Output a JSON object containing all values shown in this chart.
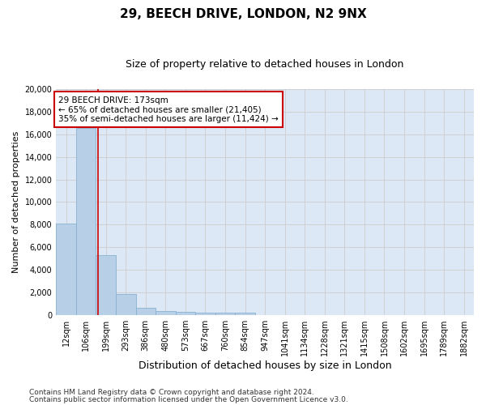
{
  "title1": "29, BEECH DRIVE, LONDON, N2 9NX",
  "title2": "Size of property relative to detached houses in London",
  "xlabel": "Distribution of detached houses by size in London",
  "ylabel": "Number of detached properties",
  "categories": [
    "12sqm",
    "106sqm",
    "199sqm",
    "293sqm",
    "386sqm",
    "480sqm",
    "573sqm",
    "667sqm",
    "760sqm",
    "854sqm",
    "947sqm",
    "1041sqm",
    "1134sqm",
    "1228sqm",
    "1321sqm",
    "1415sqm",
    "1508sqm",
    "1602sqm",
    "1695sqm",
    "1789sqm",
    "1882sqm"
  ],
  "values": [
    8100,
    16600,
    5300,
    1850,
    650,
    350,
    250,
    200,
    150,
    200,
    0,
    0,
    0,
    0,
    0,
    0,
    0,
    0,
    0,
    0,
    0
  ],
  "bar_color": "#b8cfe8",
  "bar_edge_color": "#8ab0d0",
  "vline_color": "#cc0000",
  "annotation_text": "29 BEECH DRIVE: 173sqm\n← 65% of detached houses are smaller (21,405)\n35% of semi-detached houses are larger (11,424) →",
  "annotation_box_color": "#ffffff",
  "annotation_box_edge_color": "#cc0000",
  "ylim": [
    0,
    20000
  ],
  "yticks": [
    0,
    2000,
    4000,
    6000,
    8000,
    10000,
    12000,
    14000,
    16000,
    18000,
    20000
  ],
  "grid_color": "#cccccc",
  "background_color": "#dce8f5",
  "footer_line1": "Contains HM Land Registry data © Crown copyright and database right 2024.",
  "footer_line2": "Contains public sector information licensed under the Open Government Licence v3.0.",
  "title1_fontsize": 11,
  "title2_fontsize": 9,
  "xlabel_fontsize": 9,
  "ylabel_fontsize": 8,
  "tick_fontsize": 7,
  "annotation_fontsize": 7.5,
  "footer_fontsize": 6.5,
  "vline_pos": 1.62
}
